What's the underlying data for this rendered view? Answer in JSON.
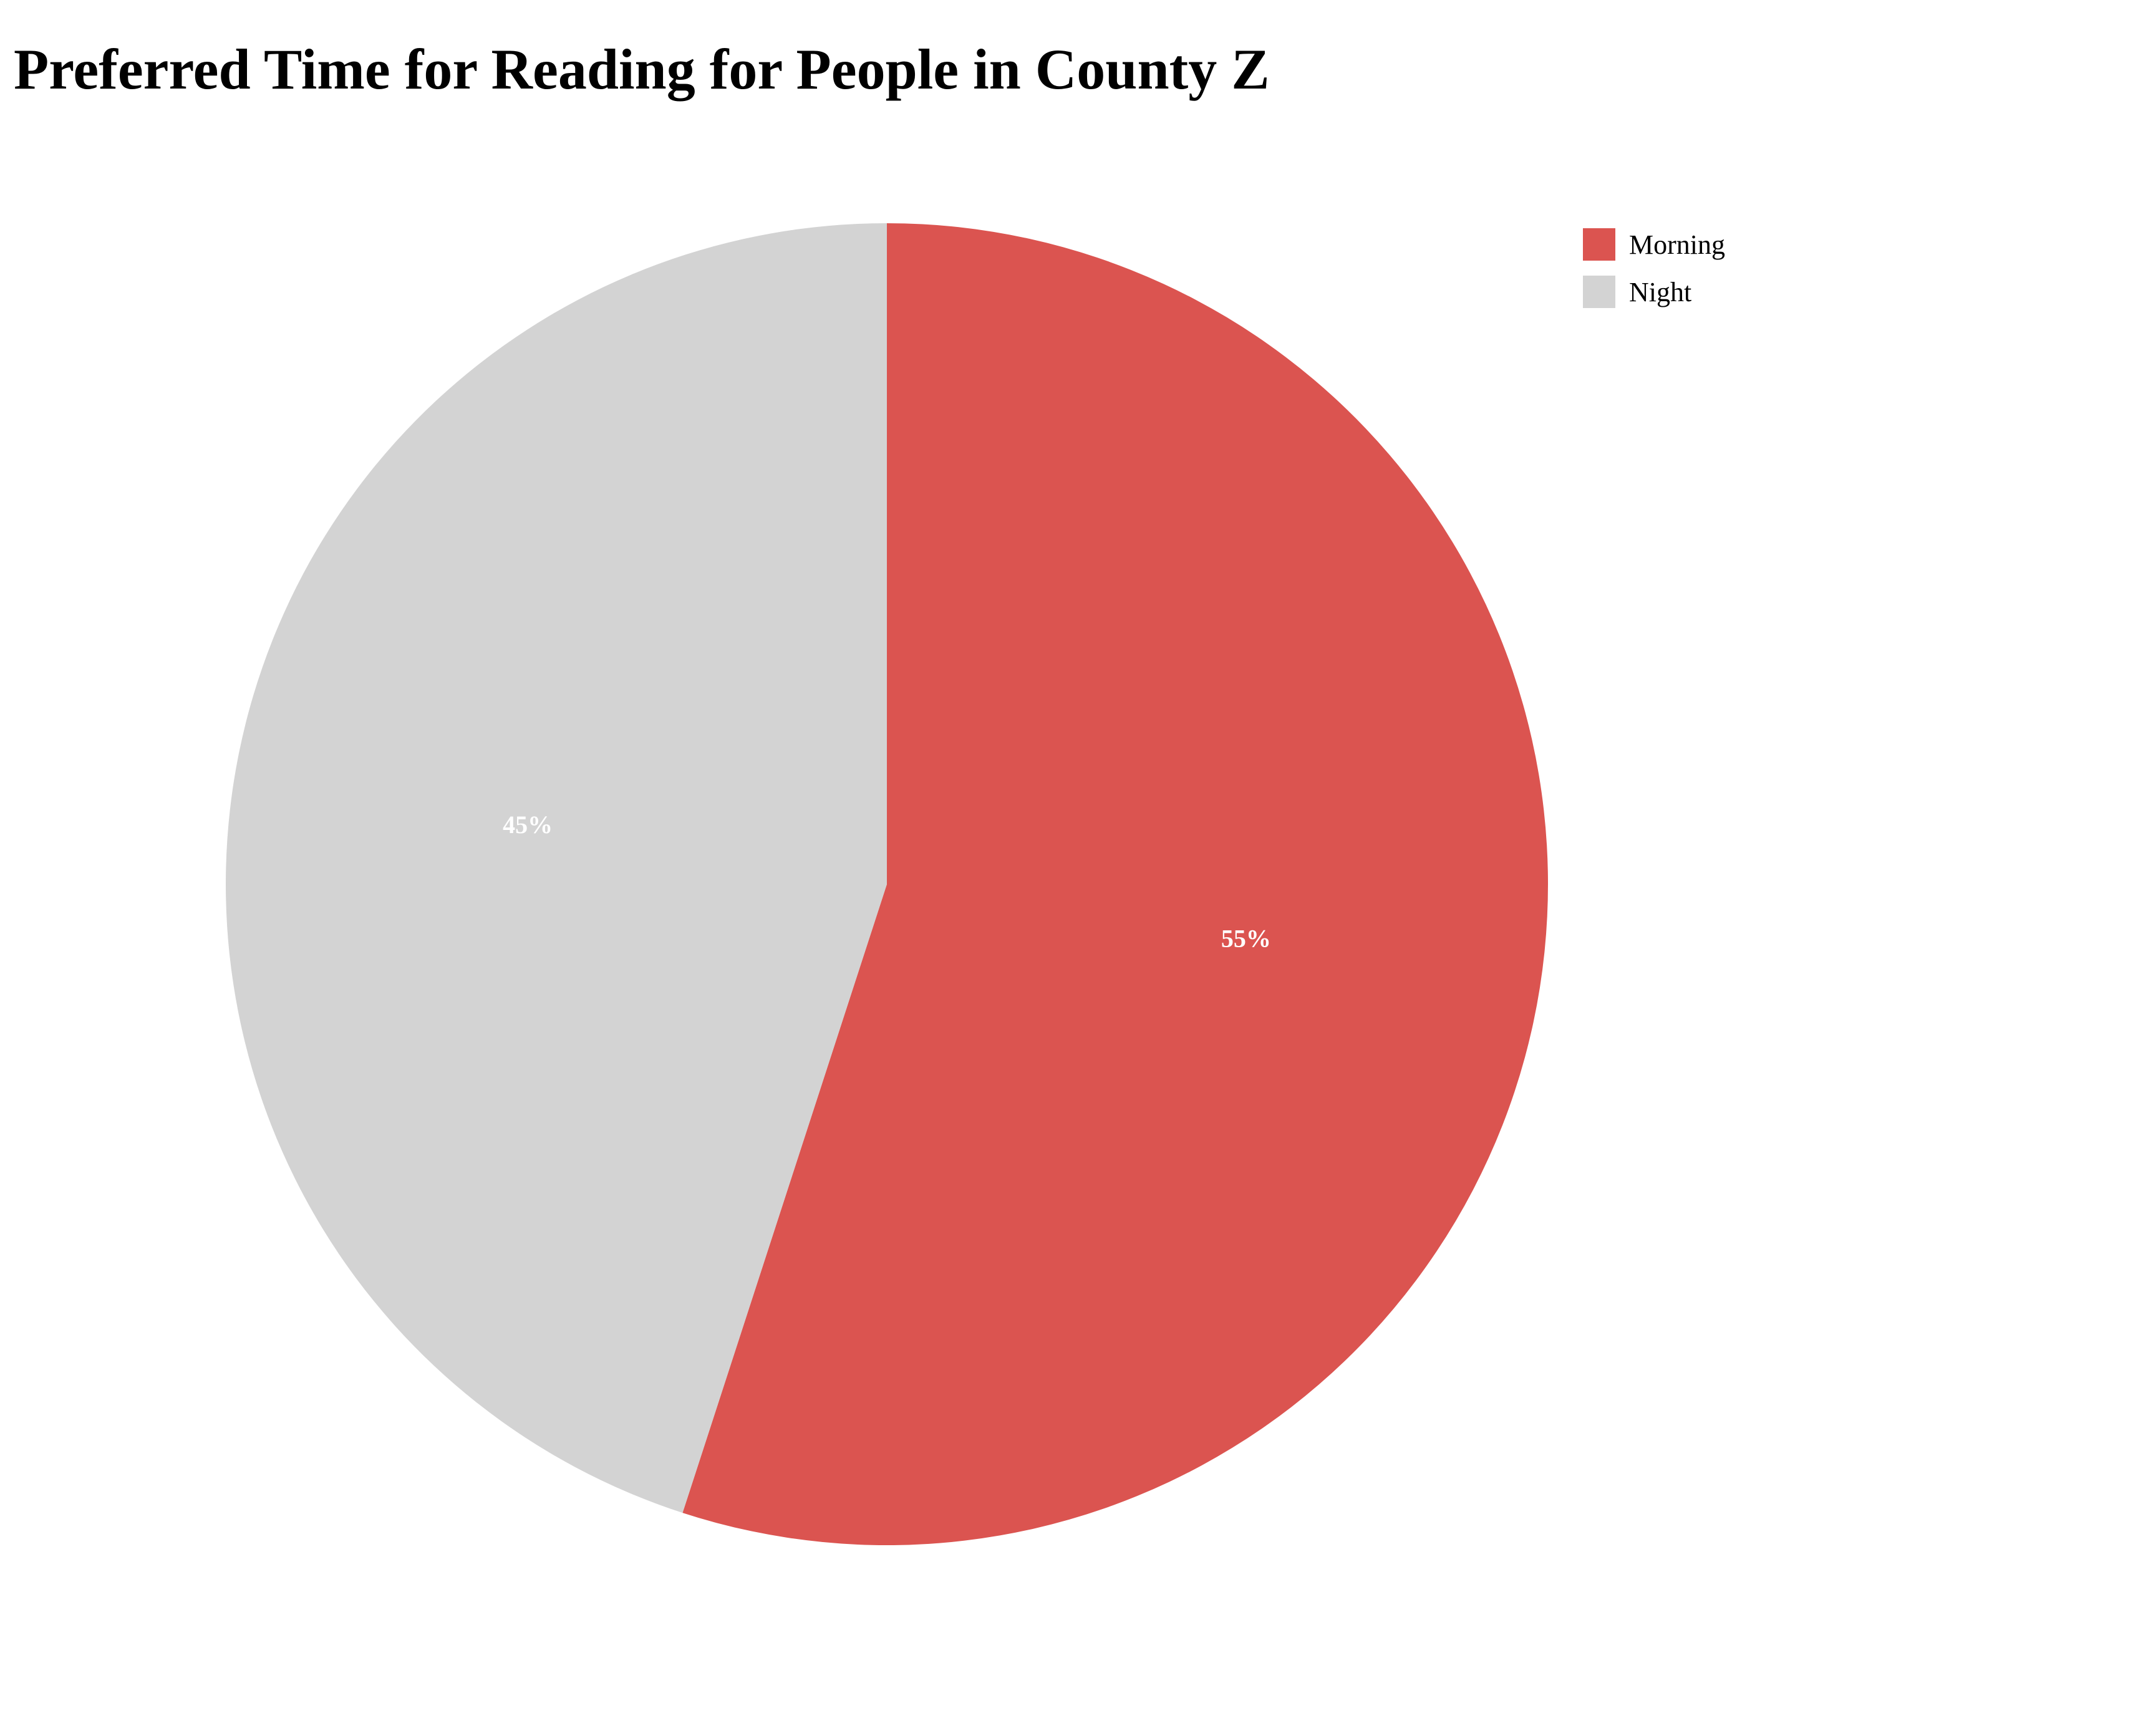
{
  "chart_data": {
    "type": "pie",
    "title": "Preferred Time for Reading for People in County Z",
    "categories": [
      "Morning",
      "Night"
    ],
    "values": [
      55,
      45
    ],
    "labels": [
      "55%",
      "45%"
    ],
    "colors": [
      "#db5450",
      "#d3d3d3"
    ],
    "start_angle": "12 o'clock",
    "direction": "clockwise",
    "legend_position": "top-right"
  }
}
